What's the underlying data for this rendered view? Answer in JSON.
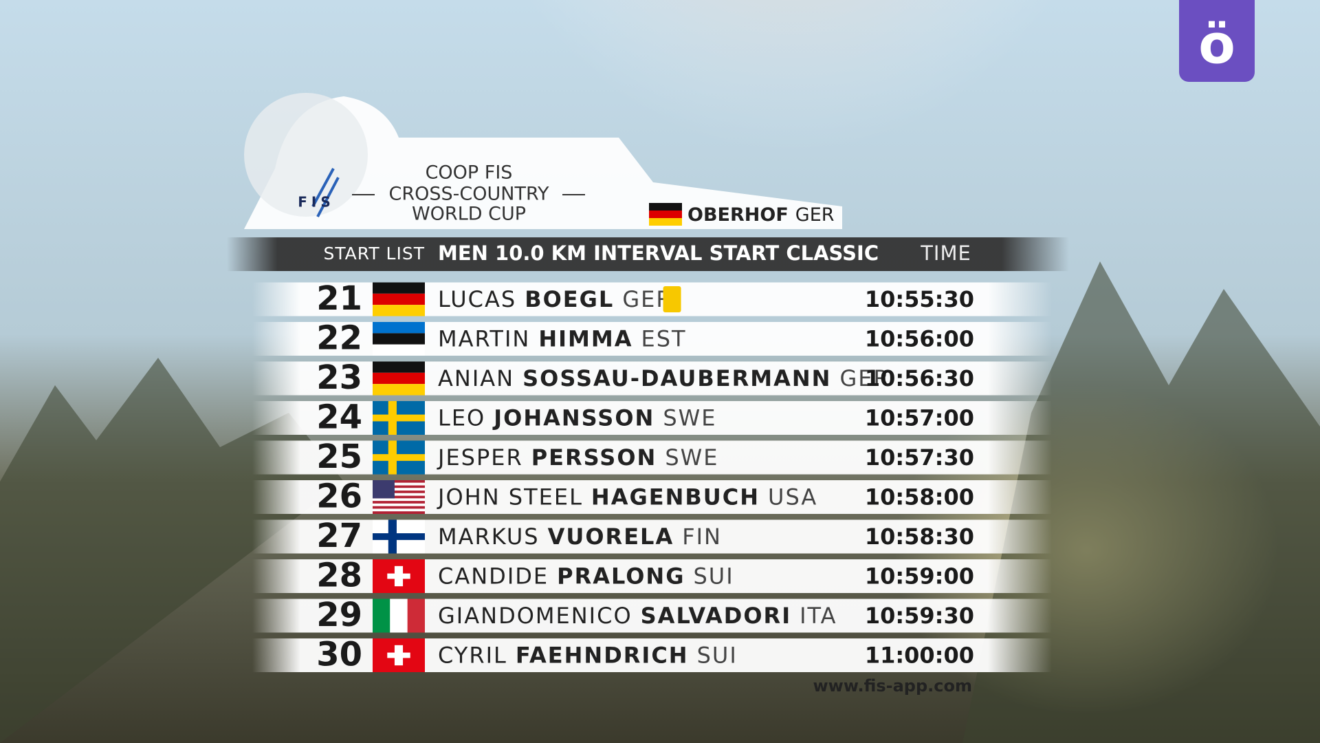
{
  "header": {
    "logo": "FIS",
    "event_title": [
      "COOP FIS",
      "CROSS-COUNTRY",
      "WORLD CUP"
    ],
    "venue": "OBERHOF",
    "venue_nation": "GER"
  },
  "table": {
    "label": "START LIST",
    "race": "MEN 10.0 KM INTERVAL START CLASSIC",
    "time_header": "TIME",
    "rows": [
      {
        "bib": 21,
        "first_name": "LUCAS",
        "last_name": "BOEGL",
        "nation": "GER",
        "time": "10:55:30"
      },
      {
        "bib": 22,
        "first_name": "MARTIN",
        "last_name": "HIMMA",
        "nation": "EST",
        "time": "10:56:00"
      },
      {
        "bib": 23,
        "first_name": "ANIAN",
        "last_name": "SOSSAU-DAUBERMANN",
        "nation": "GER",
        "time": "10:56:30"
      },
      {
        "bib": 24,
        "first_name": "LEO",
        "last_name": "JOHANSSON",
        "nation": "SWE",
        "time": "10:57:00"
      },
      {
        "bib": 25,
        "first_name": "JESPER",
        "last_name": "PERSSON",
        "nation": "SWE",
        "time": "10:57:30"
      },
      {
        "bib": 26,
        "first_name": "JOHN STEEL",
        "last_name": "HAGENBUCH",
        "nation": "USA",
        "time": "10:58:00"
      },
      {
        "bib": 27,
        "first_name": "MARKUS",
        "last_name": "VUORELA",
        "nation": "FIN",
        "time": "10:58:30"
      },
      {
        "bib": 28,
        "first_name": "CANDIDE",
        "last_name": "PRALONG",
        "nation": "SUI",
        "time": "10:59:00"
      },
      {
        "bib": 29,
        "first_name": "GIANDOMENICO",
        "last_name": "SALVADORI",
        "nation": "ITA",
        "time": "10:59:30"
      },
      {
        "bib": 30,
        "first_name": "CYRIL",
        "last_name": "FAEHNDRICH",
        "nation": "SUI",
        "time": "11:00:00"
      }
    ]
  },
  "footer": {
    "url": "www.fis-app.com"
  },
  "channel_logo": "ö"
}
